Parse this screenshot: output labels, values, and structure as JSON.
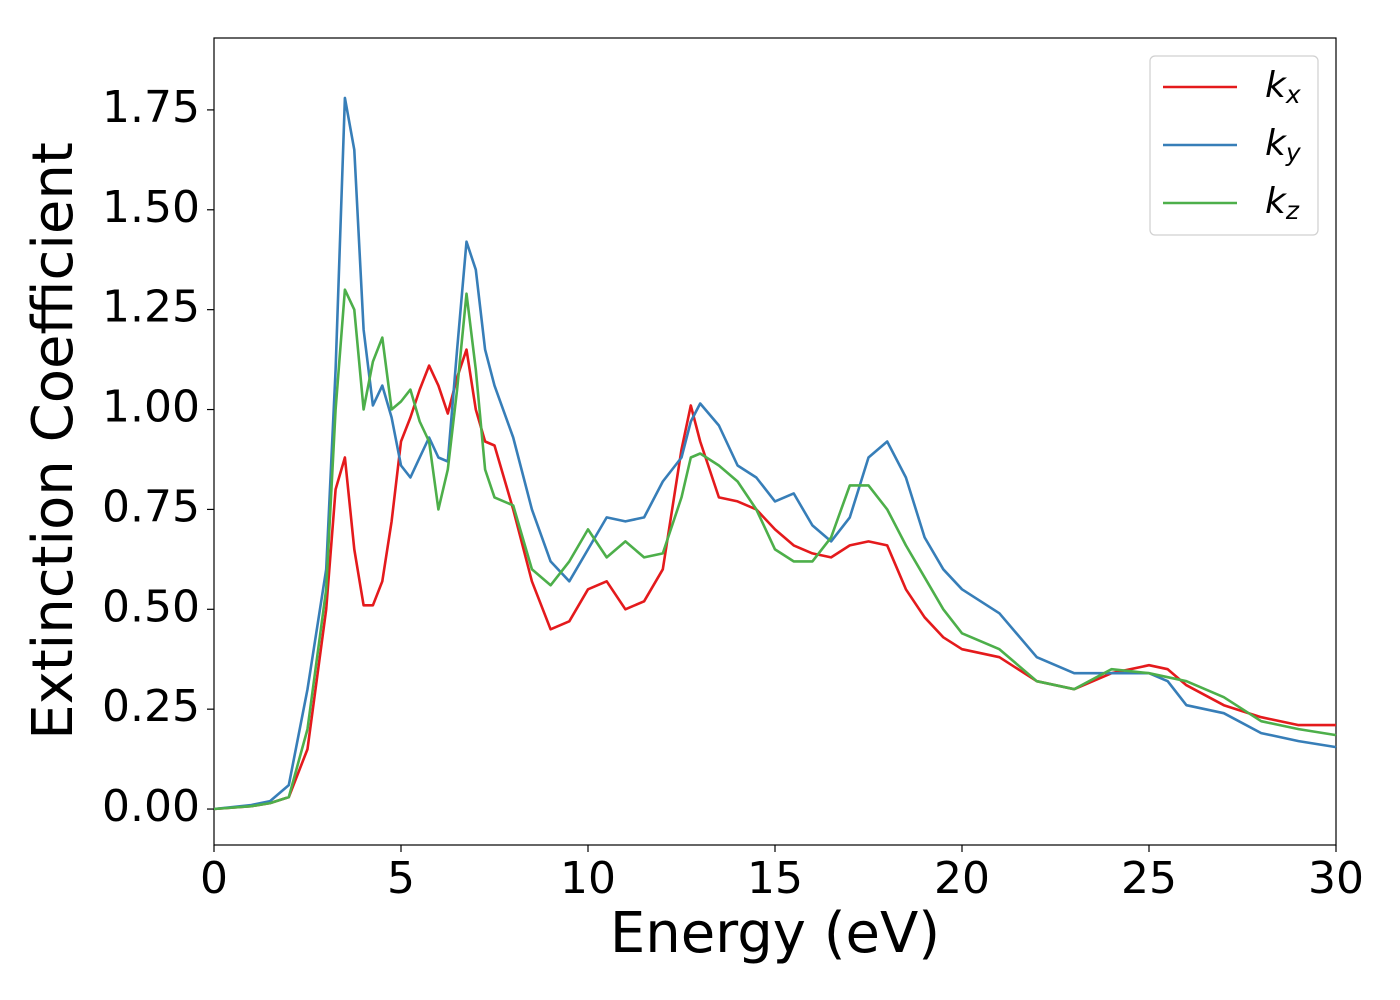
{
  "chart_data": {
    "type": "line",
    "xlabel": "Energy (eV)",
    "ylabel": "Extinction Coefficient",
    "x": [
      0,
      1,
      1.5,
      2,
      2.5,
      3,
      3.25,
      3.5,
      3.75,
      4,
      4.25,
      4.5,
      4.75,
      5,
      5.25,
      5.5,
      5.75,
      6,
      6.25,
      6.5,
      6.75,
      7,
      7.25,
      7.5,
      8,
      8.5,
      9,
      9.5,
      10,
      10.5,
      11,
      11.5,
      12,
      12.5,
      12.75,
      13,
      13.5,
      14,
      14.5,
      15,
      15.5,
      16,
      16.5,
      17,
      17.5,
      18,
      18.5,
      19,
      19.5,
      20,
      21,
      22,
      23,
      24,
      25,
      25.5,
      26,
      27,
      28,
      29,
      30
    ],
    "series": [
      {
        "name": "kx",
        "color": "#e41a1c",
        "values": [
          0,
          0.007,
          0.015,
          0.03,
          0.15,
          0.5,
          0.8,
          0.88,
          0.65,
          0.51,
          0.51,
          0.57,
          0.72,
          0.92,
          0.98,
          1.05,
          1.11,
          1.06,
          0.99,
          1.08,
          1.15,
          1.0,
          0.92,
          0.91,
          0.75,
          0.57,
          0.45,
          0.47,
          0.55,
          0.57,
          0.5,
          0.52,
          0.6,
          0.9,
          1.01,
          0.92,
          0.78,
          0.77,
          0.75,
          0.7,
          0.66,
          0.64,
          0.63,
          0.66,
          0.67,
          0.66,
          0.55,
          0.48,
          0.43,
          0.4,
          0.38,
          0.32,
          0.3,
          0.34,
          0.36,
          0.35,
          0.31,
          0.26,
          0.23,
          0.21,
          0.21
        ]
      },
      {
        "name": "ky",
        "color": "#377eb8",
        "values": [
          0,
          0.01,
          0.02,
          0.06,
          0.3,
          0.6,
          1.1,
          1.78,
          1.65,
          1.2,
          1.01,
          1.06,
          0.98,
          0.86,
          0.83,
          0.88,
          0.93,
          0.88,
          0.87,
          1.15,
          1.42,
          1.35,
          1.15,
          1.06,
          0.93,
          0.75,
          0.62,
          0.57,
          0.65,
          0.73,
          0.72,
          0.73,
          0.82,
          0.88,
          0.97,
          1.015,
          0.96,
          0.86,
          0.83,
          0.77,
          0.79,
          0.71,
          0.67,
          0.73,
          0.88,
          0.92,
          0.83,
          0.68,
          0.6,
          0.55,
          0.49,
          0.38,
          0.34,
          0.34,
          0.34,
          0.32,
          0.26,
          0.24,
          0.19,
          0.17,
          0.155
        ]
      },
      {
        "name": "kz",
        "color": "#4daf4a",
        "values": [
          0,
          0.007,
          0.015,
          0.03,
          0.2,
          0.55,
          1.0,
          1.3,
          1.25,
          1.0,
          1.12,
          1.18,
          1.0,
          1.02,
          1.05,
          0.97,
          0.92,
          0.75,
          0.85,
          1.05,
          1.29,
          1.1,
          0.85,
          0.78,
          0.76,
          0.6,
          0.56,
          0.62,
          0.7,
          0.63,
          0.67,
          0.63,
          0.64,
          0.78,
          0.88,
          0.89,
          0.86,
          0.82,
          0.75,
          0.65,
          0.62,
          0.62,
          0.68,
          0.81,
          0.81,
          0.75,
          0.66,
          0.58,
          0.5,
          0.44,
          0.4,
          0.32,
          0.3,
          0.35,
          0.34,
          0.33,
          0.32,
          0.28,
          0.22,
          0.2,
          0.185
        ]
      }
    ],
    "xlim": [
      0,
      30
    ],
    "xticks": [
      0,
      5,
      10,
      15,
      20,
      25,
      30
    ],
    "ylim": [
      -0.09,
      1.93
    ],
    "yticks": [
      {
        "value": 0,
        "label": "0.00"
      },
      {
        "value": 0.25,
        "label": "0.25"
      },
      {
        "value": 0.5,
        "label": "0.50"
      },
      {
        "value": 0.75,
        "label": "0.75"
      },
      {
        "value": 1,
        "label": "1.00"
      },
      {
        "value": 1.25,
        "label": "1.25"
      },
      {
        "value": 1.5,
        "label": "1.50"
      },
      {
        "value": 1.75,
        "label": "1.75"
      }
    ],
    "grid": false,
    "legend": "upper right"
  }
}
